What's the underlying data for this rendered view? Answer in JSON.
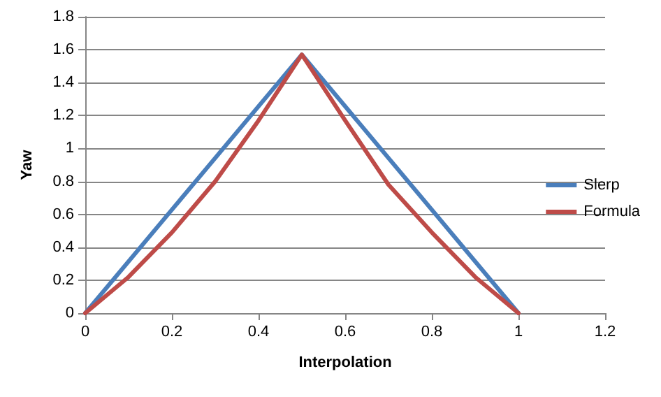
{
  "chart_data": {
    "type": "line",
    "xlabel": "Interpolation",
    "ylabel": "Yaw",
    "xlim": [
      0,
      1.2
    ],
    "xticks": [
      0,
      0.2,
      0.4,
      0.6,
      0.8,
      1,
      1.2
    ],
    "ylim": [
      0,
      1.8
    ],
    "yticks": [
      0,
      0.2,
      0.4,
      0.6,
      0.8,
      1,
      1.2,
      1.4,
      1.6,
      1.8
    ],
    "grid": "y",
    "legend": "right",
    "marker": "none",
    "series": [
      {
        "name": "Slerp",
        "color": "#4a7ebb",
        "x": [
          0,
          0.5,
          1
        ],
        "values": [
          0,
          1.57,
          0
        ]
      },
      {
        "name": "Formula",
        "color": "#be4b48",
        "x": [
          0,
          0.1,
          0.2,
          0.3,
          0.4,
          0.5,
          0.6,
          0.7,
          0.8,
          0.9,
          1
        ],
        "values": [
          0,
          0.22,
          0.49,
          0.8,
          1.17,
          1.57,
          1.17,
          0.78,
          0.49,
          0.22,
          0
        ]
      }
    ]
  }
}
